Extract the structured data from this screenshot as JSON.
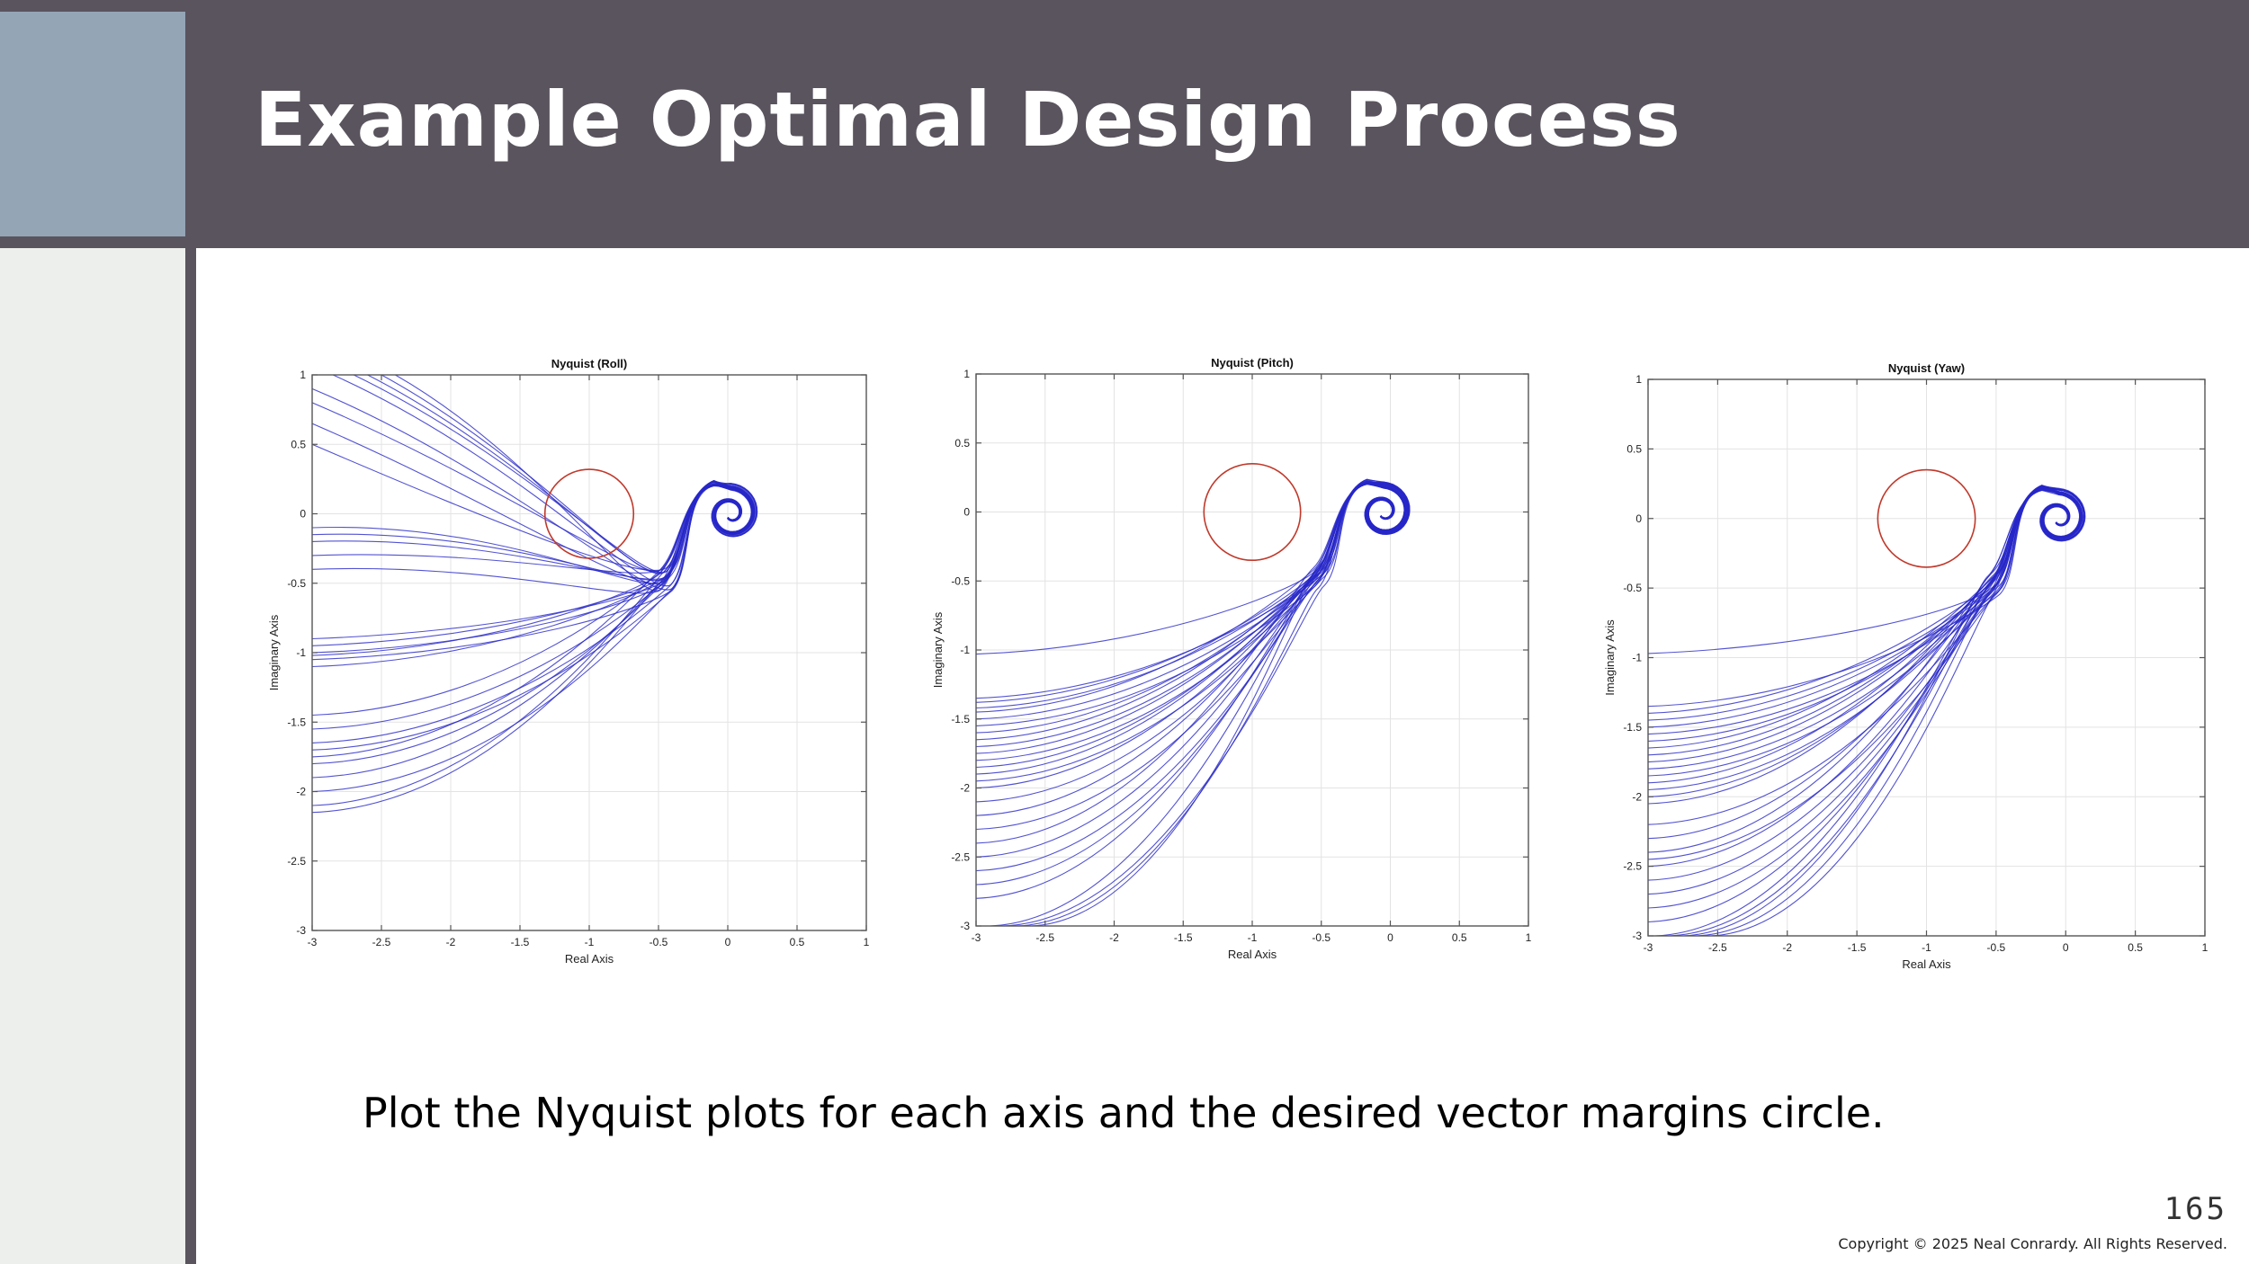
{
  "slide": {
    "title": "Example Optimal Design Process",
    "caption": "Plot the Nyquist plots for each axis and the desired vector margins circle.",
    "page_number": "165",
    "copyright": "Copyright © 2025 Neal Conrardy. All Rights Reserved."
  },
  "colors": {
    "header": "#5a545e",
    "accent": "#94a5b5",
    "side_panel": "#edefec",
    "curve": "#2727c8",
    "circle": "#c0392b"
  },
  "chart_data": [
    {
      "type": "line",
      "title": "Nyquist (Roll)",
      "xlabel": "Real Axis",
      "ylabel": "Imaginary Axis",
      "xlim": [
        -3,
        1
      ],
      "ylim": [
        -3,
        1
      ],
      "xticks": [
        -3,
        -2.5,
        -2,
        -1.5,
        -1,
        -0.5,
        0,
        0.5,
        1
      ],
      "yticks": [
        1,
        0.5,
        0,
        -0.5,
        -1,
        -1.5,
        -2,
        -2.5,
        -3
      ],
      "grid": true,
      "circle": {
        "center": [
          -1,
          0
        ],
        "radius": 0.32
      },
      "spiral_center": [
        0.02,
        0.0
      ],
      "num_curves": 30,
      "curve_start_points": [
        [
          -2.4,
          1.0
        ],
        [
          -2.5,
          1.0
        ],
        [
          -2.6,
          1.0
        ],
        [
          -2.7,
          1.0
        ],
        [
          -2.85,
          1.0
        ],
        [
          -3.0,
          0.9
        ],
        [
          -3.0,
          0.8
        ],
        [
          -3.0,
          0.65
        ],
        [
          -3.0,
          0.5
        ],
        [
          -3.0,
          -0.1
        ],
        [
          -3.0,
          -0.15
        ],
        [
          -3.0,
          -0.2
        ],
        [
          -3.0,
          -0.3
        ],
        [
          -3.0,
          -0.4
        ],
        [
          -3.0,
          -0.9
        ],
        [
          -3.0,
          -0.95
        ],
        [
          -3.0,
          -1.0
        ],
        [
          -3.0,
          -1.02
        ],
        [
          -3.0,
          -1.05
        ],
        [
          -3.0,
          -1.1
        ],
        [
          -3.0,
          -1.45
        ],
        [
          -3.0,
          -1.55
        ],
        [
          -3.0,
          -1.65
        ],
        [
          -3.0,
          -1.7
        ],
        [
          -3.0,
          -1.75
        ],
        [
          -3.0,
          -1.8
        ],
        [
          -3.0,
          -1.9
        ],
        [
          -3.0,
          -2.0
        ],
        [
          -3.0,
          -2.1
        ],
        [
          -3.0,
          -2.15
        ]
      ]
    },
    {
      "type": "line",
      "title": "Nyquist (Pitch)",
      "xlabel": "Real Axis",
      "ylabel": "Imaginary Axis",
      "xlim": [
        -3,
        1
      ],
      "ylim": [
        -3,
        1
      ],
      "xticks": [
        -3,
        -2.5,
        -2,
        -1.5,
        -1,
        -0.5,
        0,
        0.5,
        1
      ],
      "yticks": [
        1,
        0.5,
        0,
        -0.5,
        -1,
        -1.5,
        -2,
        -2.5,
        -3
      ],
      "grid": true,
      "circle": {
        "center": [
          -1,
          0
        ],
        "radius": 0.35
      },
      "spiral_center": [
        -0.05,
        0.0
      ],
      "num_curves": 28,
      "curve_start_points": [
        [
          -3.0,
          -1.03
        ],
        [
          -3.0,
          -1.35
        ],
        [
          -3.0,
          -1.38
        ],
        [
          -3.0,
          -1.42
        ],
        [
          -3.0,
          -1.45
        ],
        [
          -3.0,
          -1.5
        ],
        [
          -3.0,
          -1.55
        ],
        [
          -3.0,
          -1.6
        ],
        [
          -3.0,
          -1.65
        ],
        [
          -3.0,
          -1.7
        ],
        [
          -3.0,
          -1.75
        ],
        [
          -3.0,
          -1.8
        ],
        [
          -3.0,
          -1.85
        ],
        [
          -3.0,
          -1.9
        ],
        [
          -3.0,
          -1.95
        ],
        [
          -3.0,
          -2.0
        ],
        [
          -3.0,
          -2.1
        ],
        [
          -3.0,
          -2.2
        ],
        [
          -3.0,
          -2.3
        ],
        [
          -3.0,
          -2.4
        ],
        [
          -3.0,
          -2.5
        ],
        [
          -3.0,
          -2.6
        ],
        [
          -3.0,
          -2.7
        ],
        [
          -3.0,
          -2.8
        ],
        [
          -2.9,
          -3.0
        ],
        [
          -2.8,
          -3.0
        ],
        [
          -2.7,
          -3.0
        ],
        [
          -2.6,
          -3.0
        ]
      ]
    },
    {
      "type": "line",
      "title": "Nyquist (Yaw)",
      "xlabel": "Real Axis",
      "ylabel": "Imaginary Axis",
      "xlim": [
        -3,
        1
      ],
      "ylim": [
        -3,
        1
      ],
      "xticks": [
        -3,
        -2.5,
        -2,
        -1.5,
        -1,
        -0.5,
        0,
        0.5,
        1
      ],
      "yticks": [
        1,
        0.5,
        0,
        -0.5,
        -1,
        -1.5,
        -2,
        -2.5,
        -3
      ],
      "grid": true,
      "circle": {
        "center": [
          -1,
          0
        ],
        "radius": 0.35
      },
      "spiral_center": [
        -0.05,
        0.0
      ],
      "num_curves": 30,
      "curve_start_points": [
        [
          -3.0,
          -0.97
        ],
        [
          -3.0,
          -1.35
        ],
        [
          -3.0,
          -1.4
        ],
        [
          -3.0,
          -1.45
        ],
        [
          -3.0,
          -1.5
        ],
        [
          -3.0,
          -1.55
        ],
        [
          -3.0,
          -1.6
        ],
        [
          -3.0,
          -1.65
        ],
        [
          -3.0,
          -1.7
        ],
        [
          -3.0,
          -1.75
        ],
        [
          -3.0,
          -1.8
        ],
        [
          -3.0,
          -1.85
        ],
        [
          -3.0,
          -1.9
        ],
        [
          -3.0,
          -1.95
        ],
        [
          -3.0,
          -2.0
        ],
        [
          -3.0,
          -2.05
        ],
        [
          -3.0,
          -2.2
        ],
        [
          -3.0,
          -2.3
        ],
        [
          -3.0,
          -2.4
        ],
        [
          -3.0,
          -2.45
        ],
        [
          -3.0,
          -2.5
        ],
        [
          -3.0,
          -2.6
        ],
        [
          -3.0,
          -2.7
        ],
        [
          -3.0,
          -2.8
        ],
        [
          -3.0,
          -2.9
        ],
        [
          -2.95,
          -3.0
        ],
        [
          -2.85,
          -3.0
        ],
        [
          -2.75,
          -3.0
        ],
        [
          -2.65,
          -3.0
        ],
        [
          -2.55,
          -3.0
        ]
      ]
    }
  ]
}
